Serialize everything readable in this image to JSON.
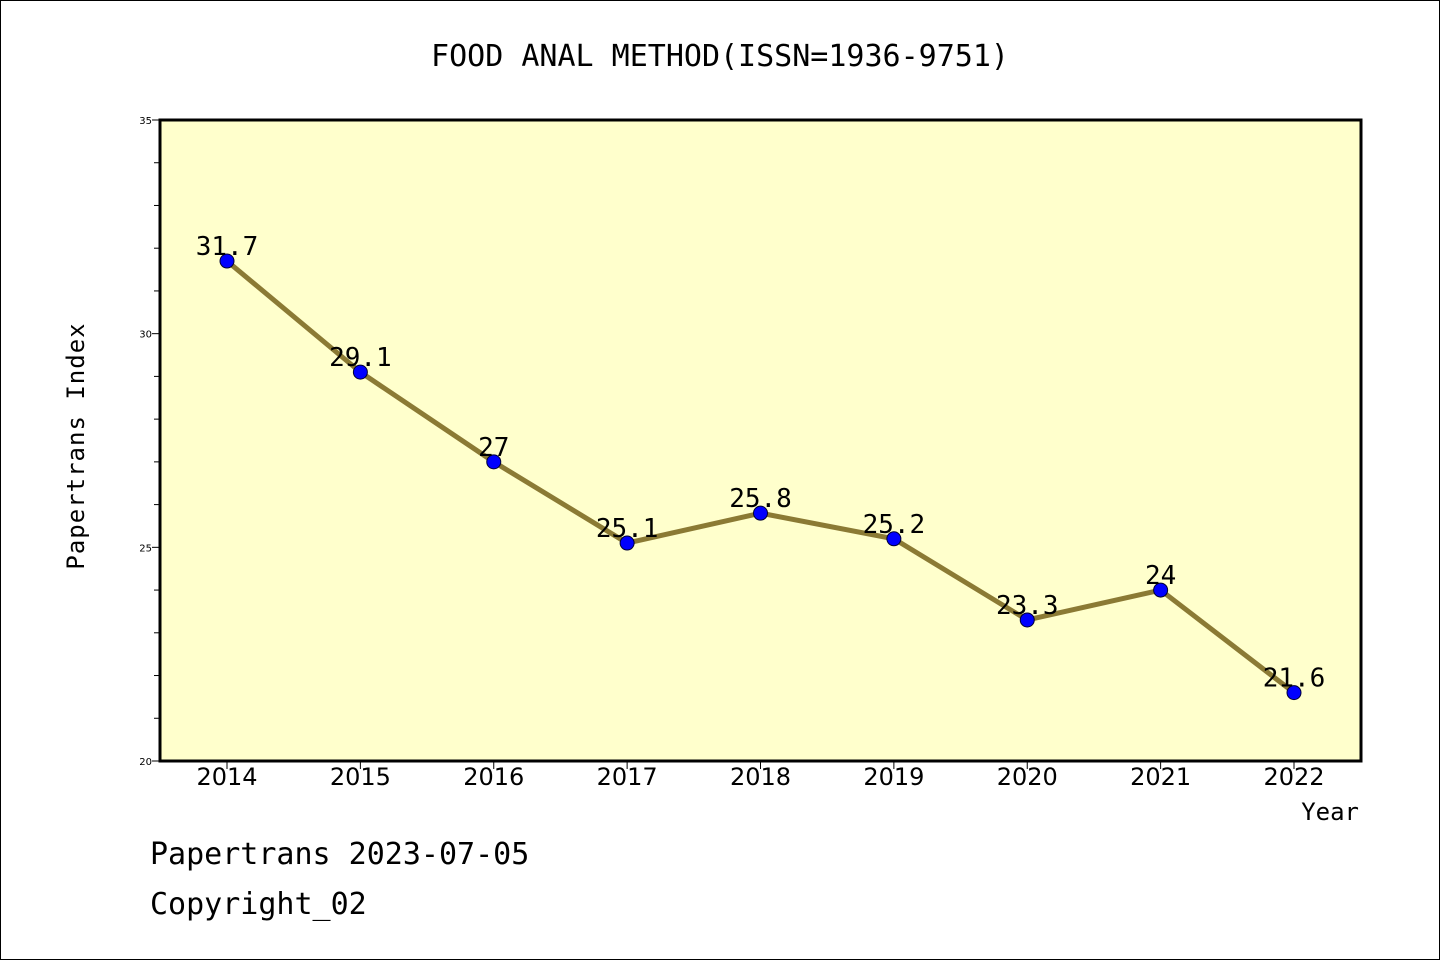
{
  "chart_data": {
    "type": "line",
    "title": "FOOD ANAL METHOD(ISSN=1936-9751)",
    "xlabel": "Year",
    "ylabel": "Papertrans Index",
    "categories": [
      "2014",
      "2015",
      "2016",
      "2017",
      "2018",
      "2019",
      "2020",
      "2021",
      "2022"
    ],
    "series": [
      {
        "values": [
          31.7,
          29.1,
          27,
          25.1,
          25.8,
          25.2,
          23.3,
          24,
          21.6
        ],
        "labels": [
          "31.7",
          "29.1",
          "27",
          "25.1",
          "25.8",
          "25.2",
          "23.3",
          "24",
          "21.6"
        ]
      }
    ],
    "ylim": [
      20,
      35
    ],
    "yticks": [
      "20",
      "25",
      "30",
      "35"
    ],
    "y_minor_step": 1,
    "grid": false,
    "legend": "none",
    "colors": {
      "plot_background": "#ffffcc",
      "line": "#8b7a34",
      "marker": "#0000ff"
    }
  },
  "footer": {
    "line1": "Papertrans 2023-07-05",
    "line2": "Copyright_02"
  }
}
